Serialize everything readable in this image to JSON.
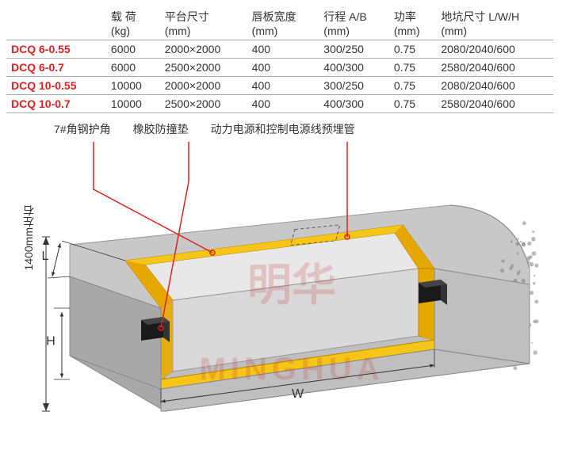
{
  "columns": [
    {
      "l1": "",
      "l2": ""
    },
    {
      "l1": "载 荷",
      "l2": "(kg)"
    },
    {
      "l1": "平台尺寸",
      "l2": "(mm)"
    },
    {
      "l1": "唇板宽度",
      "l2": "(mm)"
    },
    {
      "l1": "行程 A/B",
      "l2": "(mm)"
    },
    {
      "l1": "功率",
      "l2": "(mm)"
    },
    {
      "l1": "地坑尺寸 L/W/H",
      "l2": "(mm)"
    }
  ],
  "rows": [
    {
      "model": "DCQ 6-0.55",
      "load": "6000",
      "platform": "2000×2000",
      "lip": "400",
      "stroke": "300/250",
      "power": "0.75",
      "pit": "2080/2040/600"
    },
    {
      "model": "DCQ 6-0.7",
      "load": "6000",
      "platform": "2500×2000",
      "lip": "400",
      "stroke": "400/300",
      "power": "0.75",
      "pit": "2580/2040/600"
    },
    {
      "model": "DCQ 10-0.55",
      "load": "10000",
      "platform": "2000×2000",
      "lip": "400",
      "stroke": "300/250",
      "power": "0.75",
      "pit": "2080/2040/600"
    },
    {
      "model": "DCQ 10-0.7",
      "load": "10000",
      "platform": "2500×2000",
      "lip": "400",
      "stroke": "400/300",
      "power": "0.75",
      "pit": "2580/2040/600"
    }
  ],
  "annotations": {
    "angle_steel": "7#角钢护角",
    "rubber_bumper": "橡胶防撞垫",
    "power_conduit": "动力电源和控制电源线预埋管"
  },
  "dims": {
    "L": "L",
    "H": "H",
    "W": "W"
  },
  "side_label": "1400mm左右",
  "watermark": {
    "cn": "明华",
    "en": "MINGHUA"
  },
  "colors": {
    "concrete_top": "#c8c8c8",
    "concrete_front": "#bfbfbf",
    "concrete_side": "#a8a8a8",
    "frame_outer": "#f5c518",
    "frame_inner": "#e6a800",
    "pit_wall": "#d9d9d9",
    "pit_floor": "#e8e8e8",
    "bumper": "#1a1a1a",
    "leader": "#d22",
    "dim": "#333",
    "wm": "rgba(200,60,60,0.22)"
  }
}
